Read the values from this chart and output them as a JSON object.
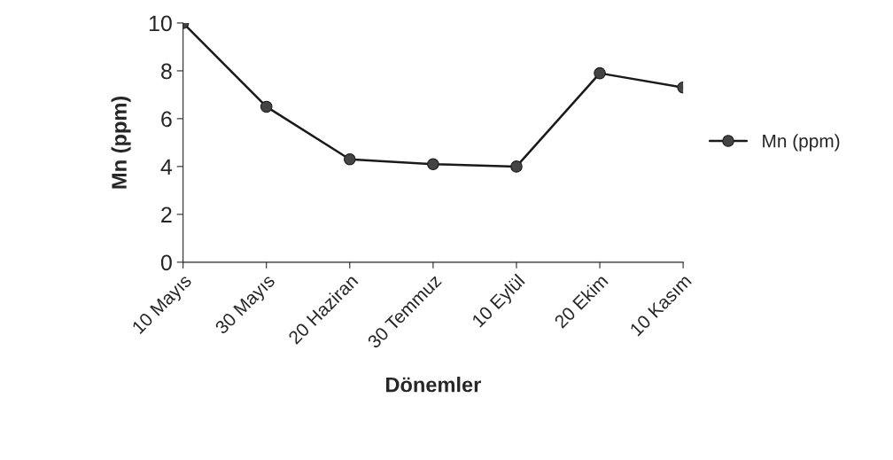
{
  "chart_data": {
    "type": "line",
    "xlabel": "Dönemler",
    "ylabel": "Mn (ppm)",
    "categories": [
      "10 Mayıs",
      "30 Mayıs",
      "20 Haziran",
      "30 Temmuz",
      "10 Eylül",
      "20 Ekim",
      "10 Kasım"
    ],
    "series": [
      {
        "name": "Mn (ppm)",
        "color": "#1a1a1a",
        "values": [
          10.0,
          6.5,
          4.3,
          4.1,
          4.0,
          7.9,
          7.3
        ]
      }
    ],
    "ylim": [
      0,
      10
    ],
    "yticks": [
      0,
      2,
      4,
      6,
      8,
      10
    ],
    "grid": false,
    "legend": "right",
    "marker": "circle",
    "line_style": "solid"
  }
}
